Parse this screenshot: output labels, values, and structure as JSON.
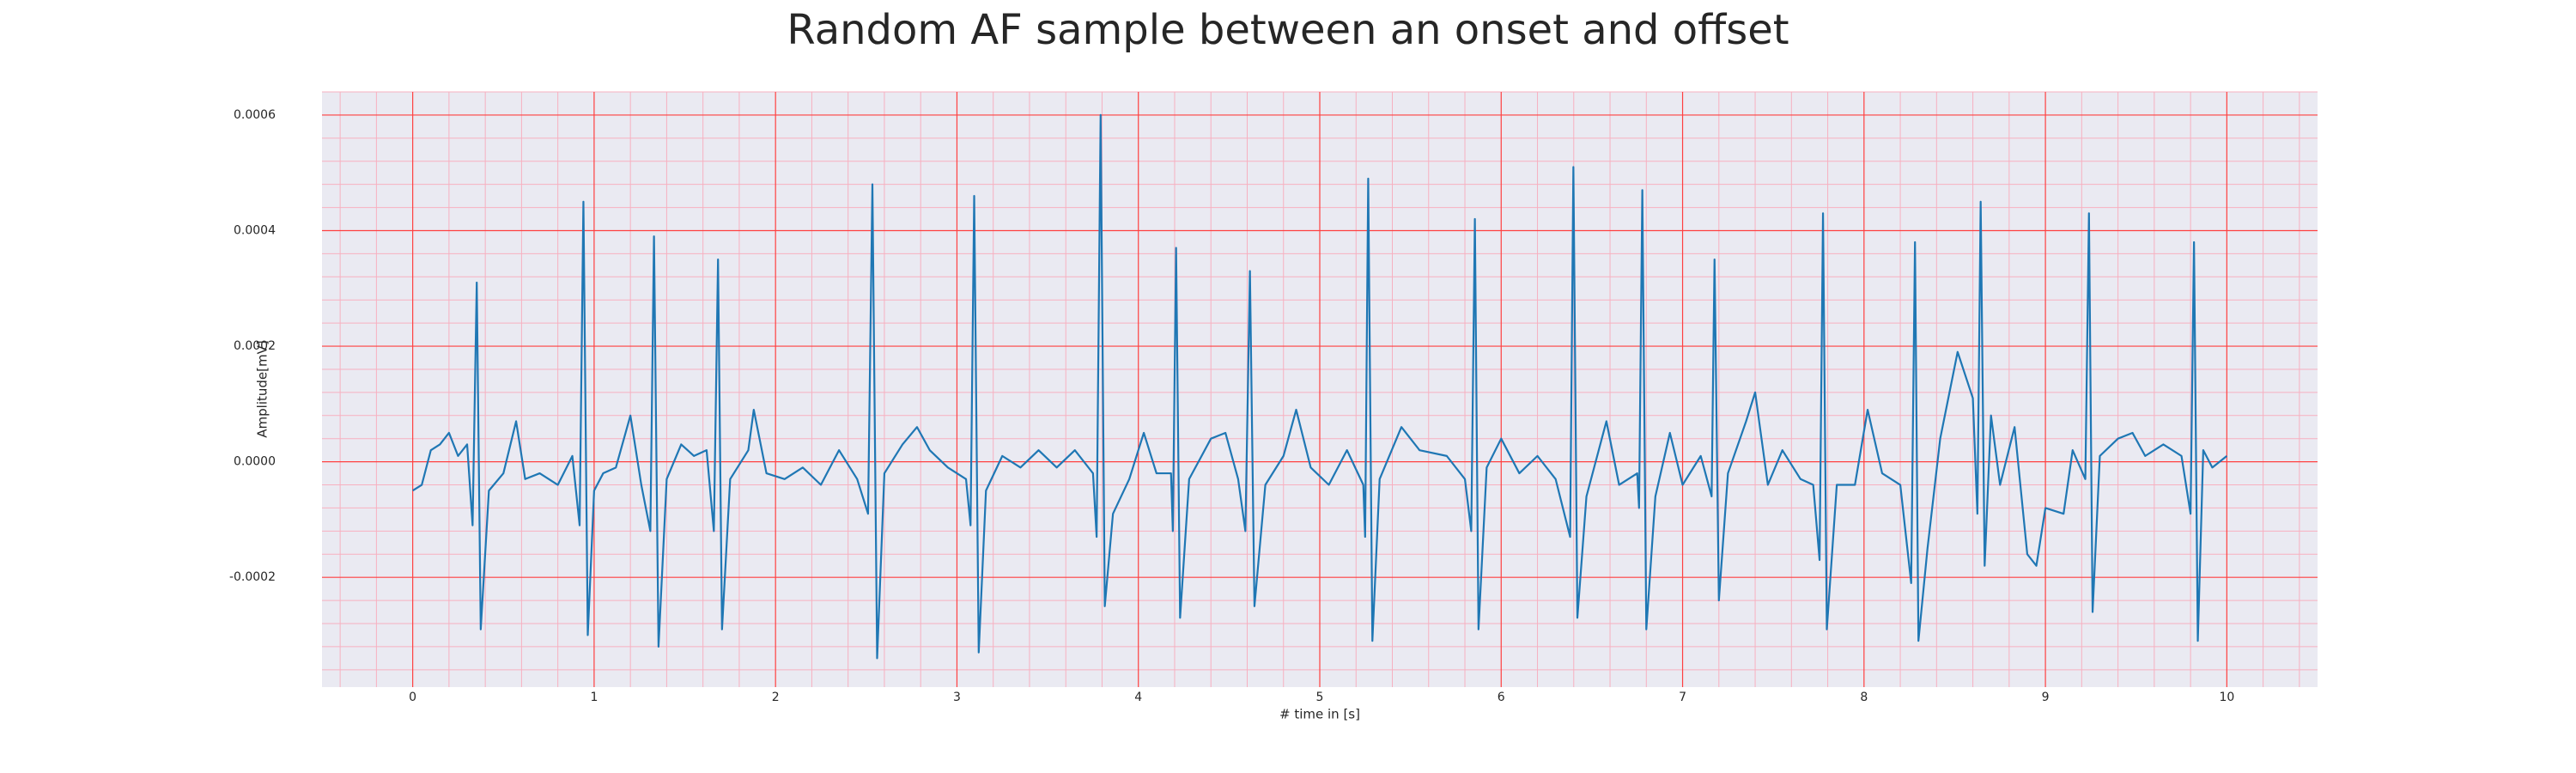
{
  "chart_data": {
    "type": "line",
    "title": "Random AF sample between an onset and offset",
    "x_label": "# time in [s]",
    "y_label": "Amplitude[mV]",
    "xlim": [
      -0.5,
      10.5
    ],
    "ylim": [
      -0.00039,
      0.00064
    ],
    "xticks": [
      0,
      1,
      2,
      3,
      4,
      5,
      6,
      7,
      8,
      9,
      10
    ],
    "yticks": [
      -0.0002,
      {
        "value": 0,
        "label": "0.0000"
      },
      0.0002,
      0.0004,
      0.0006
    ],
    "grid": true,
    "minor_grid": true,
    "x": [
      0,
      0.05,
      0.1,
      0.15,
      0.2,
      0.25,
      0.3,
      0.33,
      0.353,
      0.375,
      0.42,
      0.5,
      0.57,
      0.62,
      0.7,
      0.8,
      0.88,
      0.92,
      0.941,
      0.965,
      1.0,
      1.05,
      1.12,
      1.2,
      1.26,
      1.31,
      1.33,
      1.355,
      1.4,
      1.48,
      1.55,
      1.62,
      1.66,
      1.683,
      1.705,
      1.75,
      1.85,
      1.88,
      1.95,
      2.05,
      2.15,
      2.25,
      2.35,
      2.45,
      2.51,
      2.534,
      2.56,
      2.6,
      2.7,
      2.78,
      2.85,
      2.95,
      3.05,
      3.075,
      3.095,
      3.12,
      3.16,
      3.25,
      3.35,
      3.45,
      3.55,
      3.65,
      3.75,
      3.77,
      3.792,
      3.815,
      3.86,
      3.95,
      4.03,
      4.1,
      4.18,
      4.19,
      4.208,
      4.23,
      4.28,
      4.4,
      4.48,
      4.55,
      4.59,
      4.615,
      4.64,
      4.7,
      4.8,
      4.87,
      4.95,
      5.05,
      5.15,
      5.24,
      5.25,
      5.267,
      5.29,
      5.33,
      5.45,
      5.55,
      5.7,
      5.8,
      5.835,
      5.855,
      5.875,
      5.92,
      6.0,
      6.1,
      6.2,
      6.3,
      6.38,
      6.398,
      6.42,
      6.47,
      6.58,
      6.65,
      6.75,
      6.76,
      6.778,
      6.8,
      6.85,
      6.93,
      7.0,
      7.1,
      7.16,
      7.176,
      7.2,
      7.25,
      7.35,
      7.4,
      7.47,
      7.55,
      7.65,
      7.72,
      7.755,
      7.774,
      7.795,
      7.85,
      7.95,
      8.02,
      8.1,
      8.2,
      8.26,
      8.281,
      8.3,
      8.35,
      8.42,
      8.516,
      8.6,
      8.625,
      8.643,
      8.665,
      8.7,
      8.75,
      8.83,
      8.9,
      8.95,
      9.0,
      9.1,
      9.15,
      9.22,
      9.24,
      9.26,
      9.3,
      9.4,
      9.48,
      9.55,
      9.65,
      9.75,
      9.8,
      9.819,
      9.84,
      9.87,
      9.92,
      10.0
    ],
    "series": [
      {
        "color": "#1f77b4",
        "values": [
          -5e-05,
          -4e-05,
          2e-05,
          3e-05,
          5e-05,
          1e-05,
          3e-05,
          -0.00011,
          0.00031,
          -0.00029,
          -5e-05,
          -2e-05,
          7e-05,
          -3e-05,
          -2e-05,
          -4e-05,
          1e-05,
          -0.00011,
          0.00045,
          -0.0003,
          -5e-05,
          -2e-05,
          -1e-05,
          8e-05,
          -4e-05,
          -0.00012,
          0.00039,
          -0.00032,
          -3e-05,
          3e-05,
          1e-05,
          2e-05,
          -0.00012,
          0.00035,
          -0.00029,
          -3e-05,
          2e-05,
          9e-05,
          -2e-05,
          -3e-05,
          -1e-05,
          -4e-05,
          2e-05,
          -3e-05,
          -9e-05,
          0.00048,
          -0.00034,
          -2e-05,
          3e-05,
          6e-05,
          2e-05,
          -1e-05,
          -3e-05,
          -0.00011,
          0.00046,
          -0.00033,
          -5e-05,
          1e-05,
          -1e-05,
          2e-05,
          -1e-05,
          2e-05,
          -2e-05,
          -0.00013,
          0.0006,
          -0.00025,
          -9e-05,
          -3e-05,
          5e-05,
          -2e-05,
          -2e-05,
          -0.00012,
          0.00037,
          -0.00027,
          -3e-05,
          4e-05,
          5e-05,
          -3e-05,
          -0.00012,
          0.00033,
          -0.00025,
          -4e-05,
          1e-05,
          9e-05,
          -1e-05,
          -4e-05,
          2e-05,
          -4e-05,
          -0.00013,
          0.00049,
          -0.00031,
          -3e-05,
          6e-05,
          2e-05,
          1e-05,
          -3e-05,
          -0.00012,
          0.00042,
          -0.00029,
          -1e-05,
          4e-05,
          -2e-05,
          1e-05,
          -3e-05,
          -0.00013,
          0.00051,
          -0.00027,
          -6e-05,
          7e-05,
          -4e-05,
          -2e-05,
          -8e-05,
          0.00047,
          -0.00029,
          -6e-05,
          5e-05,
          -4e-05,
          1e-05,
          -6e-05,
          0.00035,
          -0.00024,
          -2e-05,
          7e-05,
          0.00012,
          -4e-05,
          2e-05,
          -3e-05,
          -4e-05,
          -0.00017,
          0.00043,
          -0.00029,
          -4e-05,
          -4e-05,
          9e-05,
          -2e-05,
          -4e-05,
          -0.00021,
          0.00038,
          -0.00031,
          -0.00015,
          4e-05,
          0.00019,
          0.00011,
          -9e-05,
          0.00045,
          -0.00018,
          8e-05,
          -4e-05,
          6e-05,
          -0.00016,
          -0.00018,
          -8e-05,
          -9e-05,
          2e-05,
          -3e-05,
          0.00043,
          -0.00026,
          1e-05,
          4e-05,
          5e-05,
          1e-05,
          3e-05,
          1e-05,
          -9e-05,
          0.00038,
          -0.00031,
          2e-05,
          -1e-05,
          1e-05
        ]
      }
    ]
  }
}
